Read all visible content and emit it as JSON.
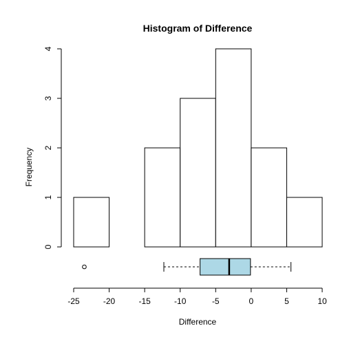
{
  "chart_data": {
    "type": "bar",
    "title": "Histogram of Difference",
    "xlabel": "Difference",
    "ylabel": "Frequency",
    "bins": [
      {
        "start": -25,
        "end": -20,
        "count": 1
      },
      {
        "start": -20,
        "end": -15,
        "count": 0
      },
      {
        "start": -15,
        "end": -10,
        "count": 2
      },
      {
        "start": -10,
        "end": -5,
        "count": 3
      },
      {
        "start": -5,
        "end": 0,
        "count": 4
      },
      {
        "start": 0,
        "end": 5,
        "count": 2
      },
      {
        "start": 5,
        "end": 10,
        "count": 1
      }
    ],
    "xlim": [
      -25,
      10
    ],
    "ylim": [
      0,
      4
    ],
    "x_ticks": [
      -25,
      -20,
      -15,
      -10,
      -5,
      0,
      5,
      10
    ],
    "y_ticks": [
      0,
      1,
      2,
      3,
      4
    ],
    "grid": false,
    "boxplot": {
      "whisker_low": -12.3,
      "q1": -7.2,
      "median": -3.1,
      "q3": -0.1,
      "whisker_high": 5.6,
      "outliers": [
        -23.5
      ],
      "fill": "#add8e6"
    },
    "bar_fill": "#ffffff",
    "bar_stroke": "#000000"
  }
}
